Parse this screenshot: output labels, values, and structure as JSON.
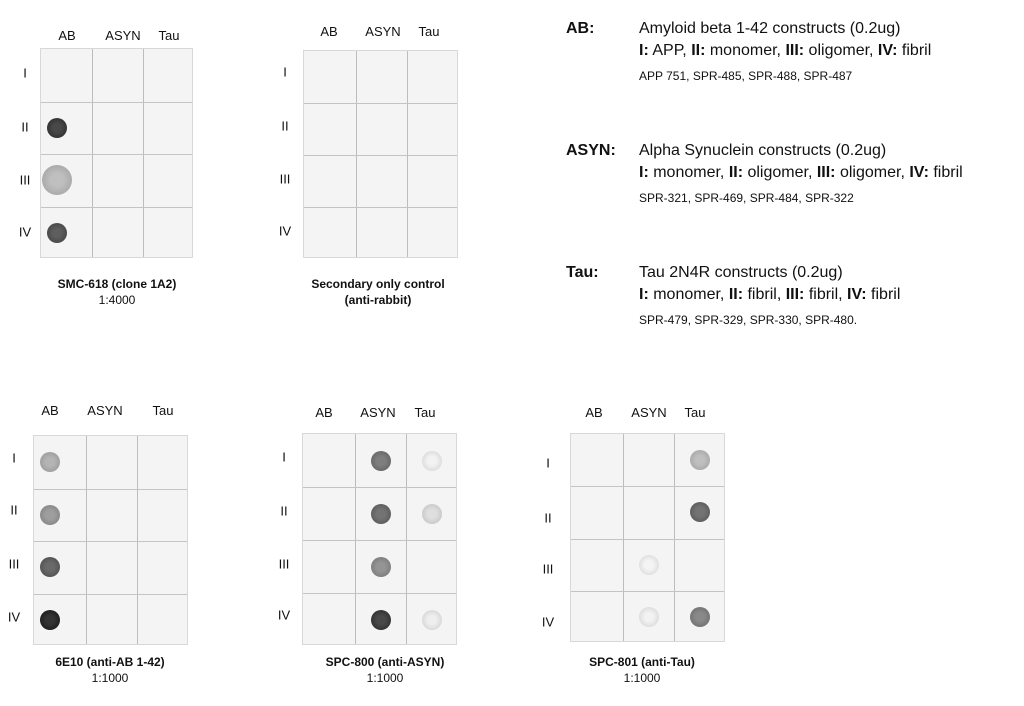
{
  "columns": [
    "AB",
    "ASYN",
    "Tau"
  ],
  "rows": [
    "I",
    "II",
    "III",
    "IV"
  ],
  "blots": [
    {
      "title": "SMC-618 (clone 1A2)",
      "dilution": "1:4000",
      "dots": [
        [
          0,
          0,
          0
        ],
        [
          0.85,
          0,
          0
        ],
        [
          0.3,
          0,
          0
        ],
        [
          0.75,
          0,
          0
        ]
      ]
    },
    {
      "title": "Secondary only control",
      "title2": "(anti-rabbit)",
      "dilution": "",
      "dots": [
        [
          0,
          0,
          0
        ],
        [
          0,
          0,
          0
        ],
        [
          0,
          0,
          0
        ],
        [
          0,
          0,
          0
        ]
      ]
    },
    {
      "title": "6E10 (anti-AB 1-42)",
      "dilution": "1:1000",
      "dots": [
        [
          0.35,
          0,
          0
        ],
        [
          0.45,
          0,
          0
        ],
        [
          0.7,
          0,
          0
        ],
        [
          0.95,
          0,
          0
        ]
      ]
    },
    {
      "title": "SPC-800 (anti-ASYN)",
      "dilution": "1:1000",
      "dots": [
        [
          0,
          0.6,
          0.06
        ],
        [
          0,
          0.65,
          0.15
        ],
        [
          0,
          0.5,
          0
        ],
        [
          0,
          0.85,
          0.08
        ]
      ]
    },
    {
      "title": "SPC-801 (anti-Tau)",
      "dilution": "1:1000",
      "dots": [
        [
          0,
          0,
          0.3
        ],
        [
          0,
          0,
          0.65
        ],
        [
          0,
          0.05,
          0
        ],
        [
          0,
          0.06,
          0.55
        ]
      ]
    }
  ],
  "legend": [
    {
      "key": "AB:",
      "line1": "Amyloid beta 1-42 constructs (0.2ug)",
      "parts": [
        [
          "I:",
          " APP, "
        ],
        [
          "II:",
          " monomer, "
        ],
        [
          "III:",
          " oligomer, "
        ],
        [
          "IV:",
          " fibril"
        ]
      ],
      "ids": "APP 751, SPR-485, SPR-488, SPR-487"
    },
    {
      "key": "ASYN:",
      "line1": "Alpha Synuclein constructs (0.2ug)",
      "parts": [
        [
          "I:",
          " monomer, "
        ],
        [
          "II:",
          " oligomer, "
        ],
        [
          "III:",
          " oligomer, "
        ],
        [
          "IV:",
          " fibril"
        ]
      ],
      "ids": "SPR-321, SPR-469, SPR-484, SPR-322"
    },
    {
      "key": "Tau:",
      "line1": "Tau 2N4R constructs (0.2ug)",
      "parts": [
        [
          "I:",
          " monomer, "
        ],
        [
          "II:",
          " fibril, "
        ],
        [
          "III:",
          " fibril, "
        ],
        [
          "IV:",
          " fibril"
        ]
      ],
      "ids": "SPR-479, SPR-329, SPR-330, SPR-480."
    }
  ]
}
